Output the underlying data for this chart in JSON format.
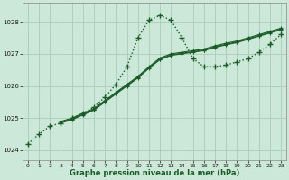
{
  "background_color": "#cce8d8",
  "grid_color": "#aaccb8",
  "line_color": "#1a5c28",
  "title": "Graphe pression niveau de la mer (hPa)",
  "xlim": [
    -0.5,
    23.5
  ],
  "ylim": [
    1023.7,
    1028.6
  ],
  "yticks": [
    1024,
    1025,
    1026,
    1027,
    1028
  ],
  "xticks": [
    0,
    1,
    2,
    3,
    4,
    5,
    6,
    7,
    8,
    9,
    10,
    11,
    12,
    13,
    14,
    15,
    16,
    17,
    18,
    19,
    20,
    21,
    22,
    23
  ],
  "main_x": [
    0,
    1,
    2,
    3,
    4,
    5,
    6,
    7,
    8,
    9,
    10,
    11,
    12,
    13,
    14,
    15,
    16,
    17,
    18,
    19,
    20,
    21,
    22,
    23
  ],
  "main_y": [
    1024.2,
    1024.5,
    1024.75,
    1024.85,
    1025.0,
    1025.15,
    1025.35,
    1025.65,
    1026.05,
    1026.6,
    1027.5,
    1028.05,
    1028.2,
    1028.05,
    1027.5,
    1026.85,
    1026.6,
    1026.6,
    1026.65,
    1026.75,
    1026.85,
    1027.05,
    1027.3,
    1027.6
  ],
  "lin1_x": [
    3,
    4,
    5,
    6,
    7,
    8,
    9,
    10,
    11,
    12,
    13,
    14,
    15,
    16,
    17,
    18,
    19,
    20,
    21,
    22,
    23
  ],
  "lin1_y": [
    1024.85,
    1024.95,
    1025.1,
    1025.25,
    1025.5,
    1025.75,
    1026.0,
    1026.25,
    1026.55,
    1026.82,
    1026.95,
    1027.0,
    1027.05,
    1027.1,
    1027.2,
    1027.28,
    1027.35,
    1027.45,
    1027.55,
    1027.65,
    1027.75
  ],
  "lin2_x": [
    3,
    4,
    5,
    6,
    7,
    8,
    9,
    10,
    11,
    12,
    13,
    14,
    15,
    16,
    17,
    18,
    19,
    20,
    21,
    22,
    23
  ],
  "lin2_y": [
    1024.9,
    1025.0,
    1025.15,
    1025.3,
    1025.55,
    1025.8,
    1026.05,
    1026.3,
    1026.6,
    1026.87,
    1027.0,
    1027.05,
    1027.1,
    1027.15,
    1027.25,
    1027.33,
    1027.4,
    1027.5,
    1027.6,
    1027.7,
    1027.8
  ],
  "lin3_x": [
    3,
    4,
    5,
    6,
    7,
    8,
    9,
    10,
    11,
    12,
    13,
    14,
    15,
    16,
    17,
    18,
    19,
    20,
    21,
    22,
    23
  ],
  "lin3_y": [
    1024.88,
    1024.97,
    1025.12,
    1025.27,
    1025.52,
    1025.78,
    1026.02,
    1026.27,
    1026.57,
    1026.84,
    1026.97,
    1027.02,
    1027.07,
    1027.12,
    1027.22,
    1027.3,
    1027.37,
    1027.47,
    1027.57,
    1027.67,
    1027.77
  ]
}
